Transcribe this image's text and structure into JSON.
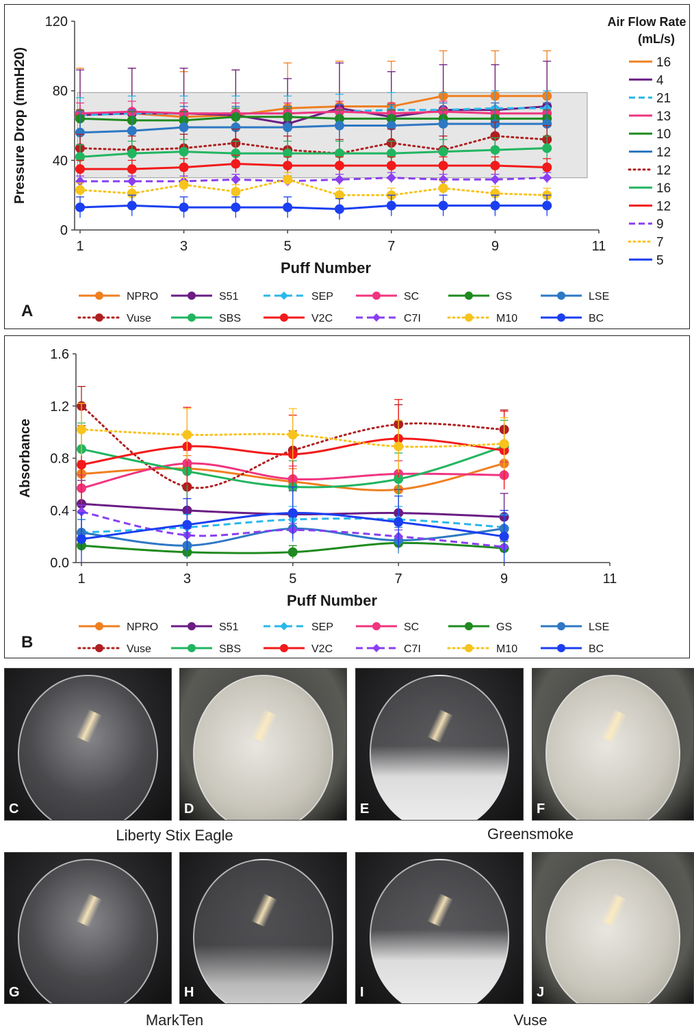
{
  "colors": {
    "NPRO": "#f07f20",
    "S51": "#6a1c84",
    "SEP": "#2ab7ea",
    "SC": "#f0357f",
    "GS": "#1f8a1f",
    "LSE": "#2e78c4",
    "Vuse": "#b01f1f",
    "SBS": "#21b560",
    "V2C": "#f21a1a",
    "C7I": "#8a3ff0",
    "M10": "#f7c31c",
    "BC": "#1b3ff0"
  },
  "chart_data": [
    {
      "panel": "A",
      "type": "line",
      "xlabel": "Puff Number",
      "ylabel": "Pressure Drop (mmH20)",
      "xlim": [
        1,
        11
      ],
      "ylim": [
        0,
        120
      ],
      "xticks": [
        "1",
        "3",
        "5",
        "7",
        "9",
        "11"
      ],
      "yticks": [
        "0",
        "40",
        "80",
        "120"
      ],
      "shaded_band": [
        30,
        79
      ],
      "x": [
        1,
        2,
        3,
        4,
        5,
        6,
        7,
        8,
        9,
        10
      ],
      "series": [
        {
          "name": "NPRO",
          "style": "solid",
          "values": [
            67,
            67,
            65,
            66,
            70,
            71,
            71,
            77,
            77,
            77
          ],
          "err": 26
        },
        {
          "name": "S51",
          "style": "solid",
          "values": [
            66,
            67,
            67,
            66,
            61,
            70,
            65,
            69,
            69,
            71
          ],
          "err": 26
        },
        {
          "name": "SEP",
          "style": "dashed",
          "values": [
            66,
            67,
            67,
            67,
            67,
            68,
            69,
            69,
            70,
            70
          ],
          "err": 10
        },
        {
          "name": "SC",
          "style": "solid",
          "values": [
            67,
            68,
            67,
            67,
            67,
            68,
            67,
            68,
            67,
            67
          ],
          "err": 6
        },
        {
          "name": "GS",
          "style": "solid",
          "values": [
            64,
            63,
            63,
            65,
            65,
            64,
            64,
            64,
            64,
            64
          ],
          "err": 5
        },
        {
          "name": "LSE",
          "style": "solid",
          "values": [
            56,
            57,
            59,
            59,
            59,
            60,
            60,
            61,
            61,
            61
          ],
          "err": 12
        },
        {
          "name": "Vuse",
          "style": "dotted",
          "values": [
            47,
            46,
            47,
            50,
            46,
            44,
            50,
            46,
            54,
            52
          ],
          "err": 8
        },
        {
          "name": "SBS",
          "style": "solid",
          "values": [
            42,
            44,
            45,
            44,
            44,
            44,
            44,
            45,
            46,
            47
          ],
          "err": 7
        },
        {
          "name": "V2C",
          "style": "solid",
          "values": [
            35,
            35,
            36,
            38,
            37,
            37,
            37,
            37,
            37,
            36
          ],
          "err": 5
        },
        {
          "name": "C7I",
          "style": "dashed",
          "values": [
            28,
            28,
            28,
            29,
            28,
            29,
            30,
            29,
            29,
            30
          ],
          "err": 3
        },
        {
          "name": "M10",
          "style": "dotted",
          "values": [
            23,
            21,
            26,
            22,
            29,
            20,
            20,
            24,
            21,
            20
          ],
          "err": 4
        },
        {
          "name": "BC",
          "style": "solid",
          "values": [
            13,
            14,
            13,
            13,
            13,
            12,
            14,
            14,
            14,
            14
          ],
          "err": 6
        }
      ],
      "flow_legend": {
        "title_line1": "Air Flow Rate",
        "title_line2": "(mL/s)",
        "entries": [
          {
            "series": "NPRO",
            "label": "16"
          },
          {
            "series": "S51",
            "label": "4"
          },
          {
            "series": "SEP",
            "label": "21"
          },
          {
            "series": "SC",
            "label": "13"
          },
          {
            "series": "GS",
            "label": "10"
          },
          {
            "series": "LSE",
            "label": "12"
          },
          {
            "series": "Vuse",
            "label": "12"
          },
          {
            "series": "SBS",
            "label": "16"
          },
          {
            "series": "V2C",
            "label": "12"
          },
          {
            "series": "C7I",
            "label": "9"
          },
          {
            "series": "M10",
            "label": "7"
          },
          {
            "series": "BC",
            "label": "5"
          }
        ]
      },
      "legend": [
        "NPRO",
        "S51",
        "SEP",
        "SC",
        "GS",
        "LSE",
        "Vuse",
        "SBS",
        "V2C",
        "C7I",
        "M10",
        "BC"
      ],
      "panel_label": "A"
    },
    {
      "panel": "B",
      "type": "line",
      "xlabel": "Puff Number",
      "ylabel": "Absorbance",
      "xlim": [
        1,
        11
      ],
      "ylim": [
        0,
        1.6
      ],
      "xticks": [
        "1",
        "3",
        "5",
        "7",
        "9",
        "11"
      ],
      "yticks": [
        "0.0",
        "0.4",
        "0.8",
        "1.2",
        "1.6"
      ],
      "x": [
        1,
        3,
        5,
        7,
        9
      ],
      "series": [
        {
          "name": "NPRO",
          "style": "solid",
          "values": [
            0.68,
            0.72,
            0.62,
            0.56,
            0.76
          ],
          "err": 0.1
        },
        {
          "name": "S51",
          "style": "solid",
          "values": [
            0.45,
            0.4,
            0.37,
            0.38,
            0.35
          ],
          "err": 0.18
        },
        {
          "name": "SEP",
          "style": "dashed",
          "values": [
            0.23,
            0.27,
            0.33,
            0.33,
            0.27
          ],
          "err": 0.1
        },
        {
          "name": "SC",
          "style": "solid",
          "values": [
            0.57,
            0.76,
            0.64,
            0.68,
            0.67
          ],
          "err": 0.1
        },
        {
          "name": "GS",
          "style": "solid",
          "values": [
            0.13,
            0.08,
            0.08,
            0.15,
            0.11
          ],
          "err": 0.05
        },
        {
          "name": "LSE",
          "style": "solid",
          "values": [
            0.23,
            0.13,
            0.26,
            0.17,
            0.26
          ],
          "err": 0.1
        },
        {
          "name": "Vuse",
          "style": "dotted",
          "values": [
            1.2,
            0.58,
            0.86,
            1.06,
            1.02
          ],
          "err": 0.15
        },
        {
          "name": "SBS",
          "style": "solid",
          "values": [
            0.87,
            0.7,
            0.58,
            0.64,
            0.89
          ],
          "err": 0.2
        },
        {
          "name": "V2C",
          "style": "solid",
          "values": [
            0.75,
            0.89,
            0.83,
            0.95,
            0.86
          ],
          "err": 0.3
        },
        {
          "name": "C7I",
          "style": "dashed",
          "values": [
            0.39,
            0.21,
            0.25,
            0.2,
            0.12
          ],
          "err": 0.05
        },
        {
          "name": "M10",
          "style": "dotted",
          "values": [
            1.02,
            0.98,
            0.98,
            0.89,
            0.91
          ],
          "err": 0.2
        },
        {
          "name": "BC",
          "style": "solid",
          "values": [
            0.18,
            0.29,
            0.38,
            0.31,
            0.2
          ],
          "err": 0.2
        }
      ],
      "legend": [
        "NPRO",
        "S51",
        "SEP",
        "SC",
        "GS",
        "LSE",
        "Vuse",
        "SBS",
        "V2C",
        "C7I",
        "M10",
        "BC"
      ],
      "panel_label": "B"
    }
  ],
  "photos": [
    {
      "label": "C",
      "fog": "clear"
    },
    {
      "label": "D",
      "fog": "dense"
    },
    {
      "label": "E",
      "fog": "bottom"
    },
    {
      "label": "F",
      "fog": "dense"
    },
    {
      "label": "G",
      "fog": "clear"
    },
    {
      "label": "H",
      "fog": "bottom-light"
    },
    {
      "label": "I",
      "fog": "bottom"
    },
    {
      "label": "J",
      "fog": "dense"
    }
  ],
  "captions": {
    "row1_left": "Liberty Stix Eagle",
    "row1_right": "Greensmoke",
    "row2_left": "MarkTen",
    "row2_right": "Vuse"
  }
}
